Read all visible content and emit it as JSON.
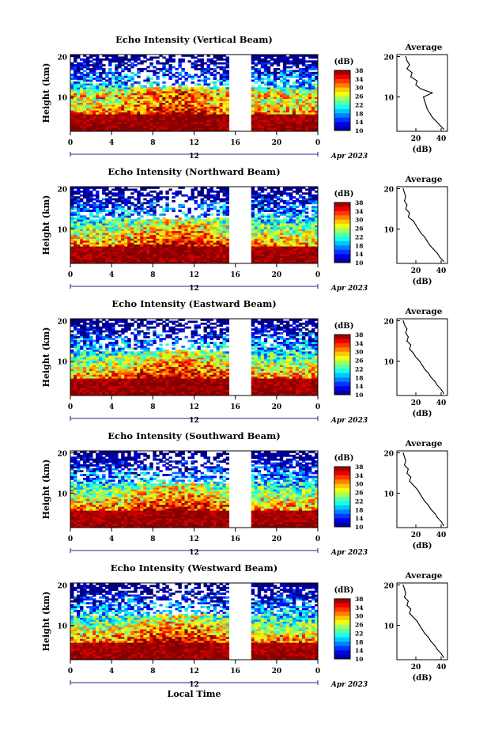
{
  "chart_data": [
    {
      "type": "heatmap",
      "title": "Echo Intensity (Vertical Beam)",
      "ylabel": "Height (km)",
      "x_ticks": [
        "0",
        "4",
        "8",
        "12",
        "16",
        "20",
        "0"
      ],
      "x_range": [
        0,
        24
      ],
      "y_ticks": [
        "20",
        "10"
      ],
      "y_range": [
        1.5,
        20.5
      ],
      "date_tick": "12",
      "date_label": "Apr 2023",
      "data_gap": [
        15.6,
        17.3
      ],
      "colorbar": {
        "unit": "(dB)",
        "ticks": [
          "38",
          "34",
          "30",
          "26",
          "22",
          "18",
          "14",
          "10"
        ],
        "range": [
          10,
          38
        ]
      },
      "profile": {
        "title": "Average",
        "xlabel": "(dB)",
        "x_ticks": [
          "20",
          "40"
        ],
        "xlim": [
          5,
          45
        ],
        "y_ticks": [
          "20",
          "10"
        ],
        "points": [
          [
            12,
            20
          ],
          [
            13,
            19
          ],
          [
            15,
            18
          ],
          [
            13,
            17
          ],
          [
            17,
            16
          ],
          [
            16,
            15
          ],
          [
            21,
            14
          ],
          [
            20,
            13
          ],
          [
            24,
            12
          ],
          [
            33,
            11
          ],
          [
            26,
            10
          ],
          [
            27,
            9
          ],
          [
            28,
            8
          ],
          [
            29,
            7
          ],
          [
            31,
            6
          ],
          [
            33,
            5
          ],
          [
            36,
            4
          ],
          [
            39,
            3
          ],
          [
            42,
            2
          ]
        ]
      }
    },
    {
      "type": "heatmap",
      "title": "Echo Intensity (Northward Beam)",
      "ylabel": "Height (km)",
      "x_ticks": [
        "0",
        "4",
        "8",
        "12",
        "16",
        "20",
        "0"
      ],
      "x_range": [
        0,
        24
      ],
      "y_ticks": [
        "20",
        "10"
      ],
      "y_range": [
        1.5,
        20.5
      ],
      "date_tick": "12",
      "date_label": "Apr 2023",
      "data_gap": [
        15.6,
        17.3
      ],
      "colorbar": {
        "unit": "(dB)",
        "ticks": [
          "38",
          "34",
          "30",
          "26",
          "22",
          "18",
          "14",
          "10"
        ],
        "range": [
          10,
          38
        ]
      },
      "profile": {
        "title": "Average",
        "xlabel": "(dB)",
        "x_ticks": [
          "20",
          "40"
        ],
        "xlim": [
          5,
          45
        ],
        "y_ticks": [
          "20",
          "10"
        ],
        "points": [
          [
            10,
            20
          ],
          [
            11,
            19
          ],
          [
            12,
            18
          ],
          [
            11,
            17
          ],
          [
            13,
            16
          ],
          [
            12,
            15
          ],
          [
            15,
            14
          ],
          [
            14,
            13
          ],
          [
            18,
            12
          ],
          [
            20,
            11
          ],
          [
            22,
            10
          ],
          [
            24,
            9
          ],
          [
            27,
            8
          ],
          [
            29,
            7
          ],
          [
            31,
            6
          ],
          [
            34,
            5
          ],
          [
            37,
            4
          ],
          [
            39,
            3
          ],
          [
            42,
            2
          ]
        ]
      }
    },
    {
      "type": "heatmap",
      "title": "Echo Intensity (Eastward Beam)",
      "ylabel": "Height (km)",
      "x_ticks": [
        "0",
        "4",
        "8",
        "12",
        "16",
        "20",
        "0"
      ],
      "x_range": [
        0,
        24
      ],
      "y_ticks": [
        "20",
        "10"
      ],
      "y_range": [
        1.5,
        20.5
      ],
      "date_tick": "12",
      "date_label": "Apr 2023",
      "data_gap": [
        15.6,
        17.3
      ],
      "colorbar": {
        "unit": "(dB)",
        "ticks": [
          "38",
          "34",
          "30",
          "26",
          "22",
          "18",
          "14",
          "10"
        ],
        "range": [
          10,
          38
        ]
      },
      "profile": {
        "title": "Average",
        "xlabel": "(dB)",
        "x_ticks": [
          "20",
          "40"
        ],
        "xlim": [
          5,
          45
        ],
        "y_ticks": [
          "20",
          "10"
        ],
        "points": [
          [
            10,
            20
          ],
          [
            11,
            19
          ],
          [
            13,
            18
          ],
          [
            12,
            17
          ],
          [
            14,
            16
          ],
          [
            13,
            15
          ],
          [
            16,
            14
          ],
          [
            15,
            13
          ],
          [
            18,
            12
          ],
          [
            20,
            11
          ],
          [
            23,
            10
          ],
          [
            25,
            9
          ],
          [
            27,
            8
          ],
          [
            30,
            7
          ],
          [
            32,
            6
          ],
          [
            35,
            5
          ],
          [
            37,
            4
          ],
          [
            40,
            3
          ],
          [
            42,
            2
          ]
        ]
      }
    },
    {
      "type": "heatmap",
      "title": "Echo Intensity (Southward Beam)",
      "ylabel": "Height (km)",
      "x_ticks": [
        "0",
        "4",
        "8",
        "12",
        "16",
        "20",
        "0"
      ],
      "x_range": [
        0,
        24
      ],
      "y_ticks": [
        "20",
        "10"
      ],
      "y_range": [
        1.5,
        20.5
      ],
      "date_tick": "12",
      "date_label": "Apr 2023",
      "data_gap": [
        15.6,
        17.3
      ],
      "colorbar": {
        "unit": "(dB)",
        "ticks": [
          "38",
          "34",
          "30",
          "26",
          "22",
          "18",
          "14",
          "10"
        ],
        "range": [
          10,
          38
        ]
      },
      "profile": {
        "title": "Average",
        "xlabel": "(dB)",
        "x_ticks": [
          "20",
          "40"
        ],
        "xlim": [
          5,
          45
        ],
        "y_ticks": [
          "20",
          "10"
        ],
        "points": [
          [
            10,
            20
          ],
          [
            11,
            19
          ],
          [
            12,
            18
          ],
          [
            11,
            17
          ],
          [
            14,
            16
          ],
          [
            13,
            15
          ],
          [
            16,
            14
          ],
          [
            15,
            13
          ],
          [
            18,
            12
          ],
          [
            21,
            11
          ],
          [
            23,
            10
          ],
          [
            25,
            9
          ],
          [
            27,
            8
          ],
          [
            30,
            7
          ],
          [
            32,
            6
          ],
          [
            35,
            5
          ],
          [
            37,
            4
          ],
          [
            40,
            3
          ],
          [
            42,
            2
          ]
        ]
      }
    },
    {
      "type": "heatmap",
      "title": "Echo Intensity (Westward Beam)",
      "ylabel": "Height (km)",
      "x_ticks": [
        "0",
        "4",
        "8",
        "12",
        "16",
        "20",
        "0"
      ],
      "x_range": [
        0,
        24
      ],
      "y_ticks": [
        "20",
        "10"
      ],
      "y_range": [
        1.5,
        20.5
      ],
      "date_tick": "12",
      "date_label": "Apr 2023",
      "data_gap": [
        15.6,
        17.3
      ],
      "xlabel": "Local Time",
      "colorbar": {
        "unit": "(dB)",
        "ticks": [
          "38",
          "34",
          "30",
          "26",
          "22",
          "18",
          "14",
          "10"
        ],
        "range": [
          10,
          38
        ]
      },
      "profile": {
        "title": "Average",
        "xlabel": "(dB)",
        "x_ticks": [
          "20",
          "40"
        ],
        "xlim": [
          5,
          45
        ],
        "y_ticks": [
          "20",
          "10"
        ],
        "points": [
          [
            10,
            20
          ],
          [
            11,
            19
          ],
          [
            12,
            18
          ],
          [
            11,
            17
          ],
          [
            14,
            16
          ],
          [
            13,
            15
          ],
          [
            16,
            14
          ],
          [
            15,
            13
          ],
          [
            18,
            12
          ],
          [
            21,
            11
          ],
          [
            23,
            10
          ],
          [
            25,
            9
          ],
          [
            27,
            8
          ],
          [
            30,
            7
          ],
          [
            32,
            6
          ],
          [
            35,
            5
          ],
          [
            37,
            4
          ],
          [
            40,
            3
          ],
          [
            42,
            2
          ]
        ]
      }
    }
  ]
}
